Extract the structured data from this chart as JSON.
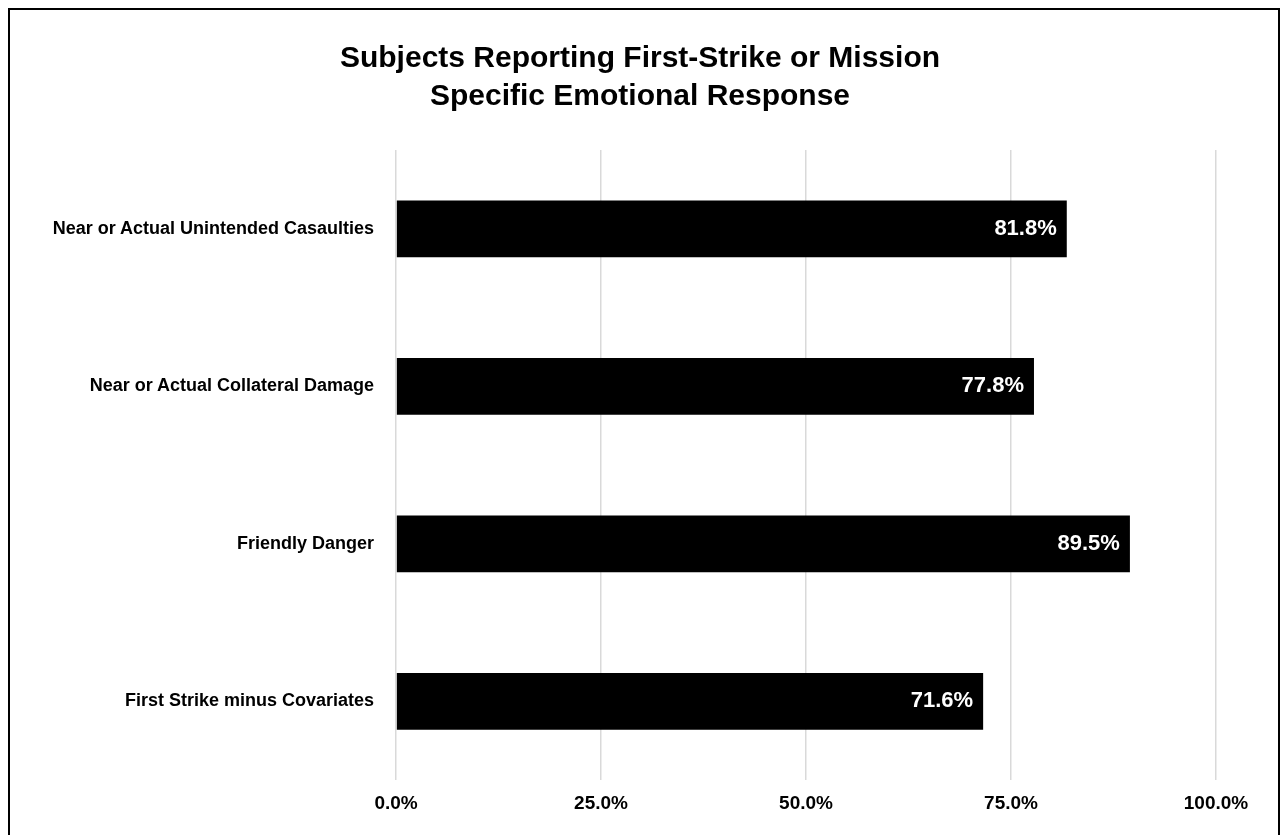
{
  "chart_data": {
    "type": "bar",
    "orientation": "horizontal",
    "title": "Subjects Reporting First-Strike or Mission Specific Emotional Response",
    "categories": [
      "Near or Actual Unintended Casaulties",
      "Near or Actual Collateral Damage",
      "Friendly Danger",
      "First Strike minus Covariates"
    ],
    "values": [
      81.8,
      77.8,
      89.5,
      71.6
    ],
    "color": "#000000",
    "value_labels": [
      "81.8%",
      "77.8%",
      "89.5%",
      "71.6%"
    ],
    "xlim": [
      0,
      100
    ],
    "xticks": [
      {
        "value": 0,
        "label": "0.0%"
      },
      {
        "value": 25,
        "label": "25.0%"
      },
      {
        "value": 50,
        "label": "50.0%"
      },
      {
        "value": 75,
        "label": "75.0%"
      },
      {
        "value": 100,
        "label": "100.0%"
      }
    ],
    "grid": "x",
    "legend": false
  }
}
